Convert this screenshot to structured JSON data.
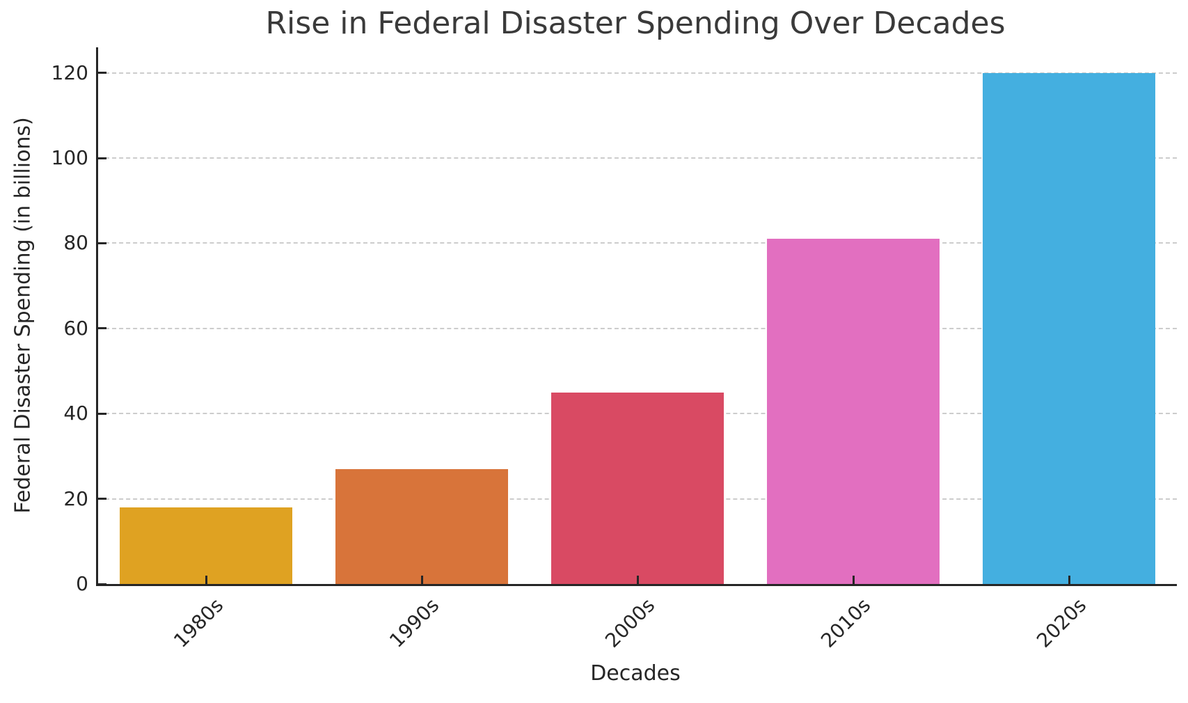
{
  "chart_data": {
    "type": "bar",
    "title": "Rise in Federal Disaster Spending Over Decades",
    "xlabel": "Decades",
    "ylabel": "Federal Disaster Spending (in billions)",
    "categories": [
      "1980s",
      "1990s",
      "2000s",
      "2010s",
      "2020s"
    ],
    "values": [
      18,
      27,
      45,
      81,
      120
    ],
    "bar_colors": [
      "#dfa222",
      "#d8743a",
      "#d94a63",
      "#e26fc0",
      "#44afe0"
    ],
    "yticks": [
      0,
      20,
      40,
      60,
      80,
      100,
      120
    ],
    "ylim": [
      0,
      126
    ],
    "bar_width_fraction": 0.8,
    "grid": "horizontal-dashed",
    "grid_color": "#cccccc",
    "axis_color": "#262626",
    "text_color": "#262626",
    "title_color": "#3a3a3a",
    "background": "#ffffff",
    "x_tick_rotation_deg": 45,
    "legend": "none"
  }
}
